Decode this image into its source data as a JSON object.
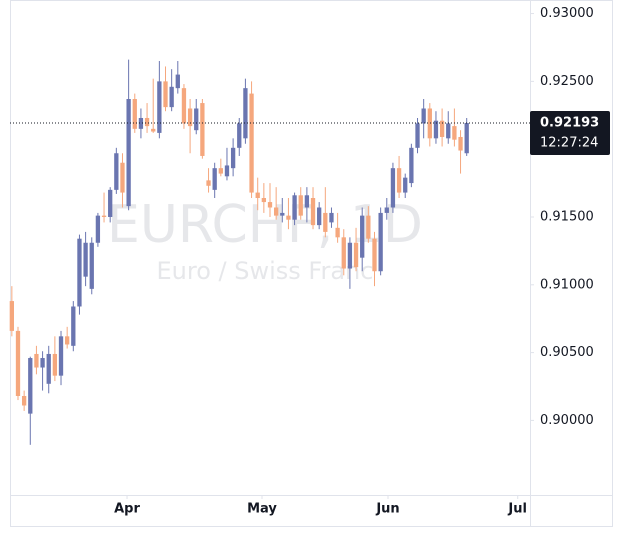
{
  "chart_data": {
    "type": "candlestick",
    "watermark_title": "EURCHF, 1D",
    "watermark_subtitle": "Euro / Swiss Franc",
    "categories": [
      null,
      null,
      null,
      null,
      null,
      null,
      null,
      null,
      null,
      null,
      null,
      null,
      null,
      null,
      null,
      null,
      null,
      null,
      null,
      null,
      null,
      null,
      null,
      null,
      null,
      null,
      null,
      null,
      null,
      null,
      null,
      null,
      null,
      null,
      null,
      null,
      null,
      null,
      null,
      null,
      null,
      null,
      null,
      null,
      null,
      null,
      null,
      null,
      null,
      null,
      null,
      null,
      null,
      null,
      null,
      null,
      null,
      null,
      null,
      null,
      null,
      null,
      null,
      null,
      null,
      null,
      null,
      null,
      null,
      null,
      null,
      null,
      null,
      null,
      null
    ],
    "open": [
      0.9088,
      0.9066,
      0.9018,
      0.9005,
      0.9049,
      0.9039,
      0.9027,
      0.9049,
      0.9033,
      0.9062,
      0.9055,
      0.9084,
      0.9106,
      0.9097,
      0.9131,
      0.9151,
      0.915,
      0.917,
      0.919,
      0.9158,
      0.9237,
      0.9215,
      0.9223,
      0.9215,
      0.9212,
      0.925,
      0.9231,
      0.9245,
      0.9245,
      0.923,
      0.9214,
      0.9234,
      0.9177,
      0.917,
      0.9186,
      0.918,
      0.9186,
      0.9201,
      0.9208,
      0.9241,
      0.9168,
      0.9164,
      0.9161,
      0.9157,
      0.9151,
      0.9151,
      0.9148,
      0.9166,
      0.9157,
      0.9164,
      0.9144,
      0.9153,
      0.9146,
      0.9142,
      0.9135,
      0.9112,
      0.9131,
      0.912,
      0.9151,
      0.9134,
      0.911,
      0.9153,
      0.9157,
      0.9186,
      0.9168,
      0.9175,
      0.9201,
      0.9219,
      0.923,
      0.9208,
      0.9221,
      0.9208,
      0.9217,
      0.9209,
      0.9197
    ],
    "high": [
      0.9099,
      0.9069,
      0.9022,
      0.9047,
      0.9055,
      0.9051,
      0.9055,
      0.9062,
      0.9066,
      0.9069,
      0.9088,
      0.9137,
      0.9139,
      0.9135,
      0.9153,
      0.9168,
      0.9172,
      0.9201,
      0.9197,
      0.9266,
      0.9241,
      0.923,
      0.9234,
      0.9252,
      0.9265,
      0.9261,
      0.9259,
      0.9265,
      0.9248,
      0.9237,
      0.9237,
      0.9237,
      0.9186,
      0.919,
      0.9193,
      0.9201,
      0.9208,
      0.9223,
      0.9252,
      0.925,
      0.9179,
      0.9175,
      0.9175,
      0.9172,
      0.9164,
      0.9164,
      0.9168,
      0.9172,
      0.9172,
      0.9172,
      0.9161,
      0.9172,
      0.9157,
      0.9153,
      0.9141,
      0.9135,
      0.9142,
      0.9157,
      0.9158,
      0.9139,
      0.9157,
      0.9164,
      0.919,
      0.9195,
      0.9182,
      0.9204,
      0.9223,
      0.9237,
      0.9234,
      0.9228,
      0.923,
      0.9228,
      0.923,
      0.9214,
      0.9223
    ],
    "low": [
      0.9062,
      0.9015,
      0.9007,
      0.8982,
      0.9034,
      0.9022,
      0.902,
      0.9029,
      0.9026,
      0.9053,
      0.9051,
      0.9078,
      0.9099,
      0.9093,
      0.9128,
      0.9146,
      0.9146,
      0.9167,
      0.9157,
      0.9155,
      0.9212,
      0.9208,
      0.9212,
      0.9212,
      0.9208,
      0.9228,
      0.9228,
      0.9241,
      0.9215,
      0.9197,
      0.9211,
      0.9193,
      0.9168,
      0.9164,
      0.918,
      0.9177,
      0.918,
      0.9195,
      0.9204,
      0.9164,
      0.9155,
      0.9153,
      0.915,
      0.9148,
      0.9146,
      0.9141,
      0.9144,
      0.9148,
      0.9146,
      0.9141,
      0.9141,
      0.9135,
      0.9142,
      0.9131,
      0.9107,
      0.9097,
      0.911,
      0.911,
      0.9131,
      0.9099,
      0.9107,
      0.9148,
      0.9153,
      0.9164,
      0.9164,
      0.9172,
      0.9197,
      0.9208,
      0.9202,
      0.9204,
      0.9202,
      0.9204,
      0.9202,
      0.9182,
      0.9195
    ],
    "close": [
      0.9066,
      0.9018,
      0.9011,
      0.9046,
      0.9039,
      0.9046,
      0.9049,
      0.9033,
      0.9062,
      0.9056,
      0.9084,
      0.9134,
      0.9131,
      0.9131,
      0.9151,
      0.915,
      0.917,
      0.9197,
      0.9168,
      0.9237,
      0.9215,
      0.9223,
      0.9217,
      0.9213,
      0.925,
      0.9231,
      0.9246,
      0.9255,
      0.9219,
      0.9217,
      0.923,
      0.9195,
      0.9173,
      0.9186,
      0.9182,
      0.9188,
      0.9201,
      0.9219,
      0.9245,
      0.9168,
      0.9164,
      0.9161,
      0.9157,
      0.9151,
      0.9153,
      0.9148,
      0.9166,
      0.9151,
      0.9166,
      0.9144,
      0.9157,
      0.9139,
      0.9153,
      0.9135,
      0.9112,
      0.9131,
      0.9113,
      0.9151,
      0.9134,
      0.911,
      0.9153,
      0.9157,
      0.9186,
      0.9168,
      0.9179,
      0.9201,
      0.9219,
      0.923,
      0.9208,
      0.9221,
      0.9209,
      0.9219,
      0.9207,
      0.9199,
      0.92193
    ],
    "up_color": "#6a75b0",
    "down_color": "#f5a77d",
    "xlim": [
      -0.3,
      84.3
    ],
    "xticks": [
      {
        "value": 18.74,
        "label": "Apr"
      },
      {
        "value": 40.7,
        "label": "May"
      },
      {
        "value": 61.2,
        "label": "Jun"
      },
      {
        "value": 82.3,
        "label": "Jul"
      }
    ],
    "ylim": [
      0.8945,
      0.931
    ],
    "yticks": [
      {
        "value": 0.9,
        "label": "0.90000"
      },
      {
        "value": 0.905,
        "label": "0.90500"
      },
      {
        "value": 0.91,
        "label": "0.91000"
      },
      {
        "value": 0.915,
        "label": "0.91500"
      },
      {
        "value": 0.92,
        "label": "0.92000"
      },
      {
        "value": 0.925,
        "label": "0.92500"
      },
      {
        "value": 0.93,
        "label": "0.93000"
      }
    ],
    "last_price": 0.92193,
    "countdown": "12:27:24"
  }
}
